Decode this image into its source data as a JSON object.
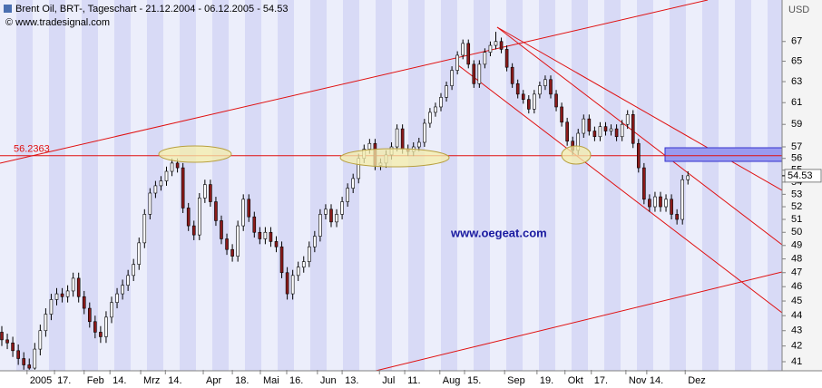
{
  "chart_data": {
    "type": "candlestick",
    "title": "Brent Oil, BRT-, Tageschart - 21.12.2004 - 06.12.2005 - 54.53",
    "source": "© www.tradesignal.com",
    "annotation": "www.oegeat.com",
    "y_label": "USD",
    "hline": 56.2363,
    "log_scale": true,
    "up_color": "#ffffff",
    "down_color": "#8b1a1a",
    "line_color": "#e01010",
    "ylim": [
      40.49,
      71.4
    ],
    "yticks": [
      41,
      42,
      43,
      44,
      45,
      46,
      47,
      48,
      49,
      50,
      51,
      52,
      53,
      54,
      55,
      56,
      57,
      59,
      61,
      63,
      65,
      67
    ],
    "xlim": [
      -0.33,
      142.15
    ],
    "xticks": [
      {
        "value": 4.6,
        "label": "2005"
      },
      {
        "value": 9.6,
        "label": "17."
      },
      {
        "value": 15,
        "label": "Feb"
      },
      {
        "value": 19.7,
        "label": "14."
      },
      {
        "value": 25.3,
        "label": "Mrz"
      },
      {
        "value": 29.8,
        "label": "14."
      },
      {
        "value": 36.7,
        "label": "Apr"
      },
      {
        "value": 42,
        "label": "18."
      },
      {
        "value": 47.1,
        "label": "Mai"
      },
      {
        "value": 51.9,
        "label": "16."
      },
      {
        "value": 57.5,
        "label": "Jun"
      },
      {
        "value": 62,
        "label": "13."
      },
      {
        "value": 68.8,
        "label": "Jul"
      },
      {
        "value": 73.4,
        "label": "11."
      },
      {
        "value": 79.8,
        "label": "Aug"
      },
      {
        "value": 84.3,
        "label": "15."
      },
      {
        "value": 91.6,
        "label": "Sep"
      },
      {
        "value": 97.5,
        "label": "19."
      },
      {
        "value": 102.6,
        "label": "Okt"
      },
      {
        "value": 107.4,
        "label": "17."
      },
      {
        "value": 113.7,
        "label": "Nov"
      },
      {
        "value": 117.5,
        "label": "14."
      },
      {
        "value": 124.5,
        "label": "Dez"
      }
    ],
    "open": [
      42.9,
      42.4,
      42.2,
      41.7,
      41.2,
      40.8,
      40.6,
      41.8,
      43.0,
      44.1,
      45.1,
      45.5,
      45.3,
      45.7,
      46.6,
      45.3,
      44.5,
      43.6,
      42.9,
      42.6,
      43.9,
      44.9,
      45.5,
      46.1,
      46.8,
      47.6,
      49.2,
      51.4,
      53.1,
      53.7,
      54.1,
      54.9,
      55.6,
      55.2,
      51.9,
      50.5,
      49.8,
      52.7,
      53.8,
      52.4,
      50.9,
      49.5,
      48.7,
      48.2,
      50.5,
      52.6,
      51.2,
      50.0,
      49.5,
      50.0,
      49.3,
      48.9,
      47.0,
      45.5,
      46.8,
      47.4,
      47.8,
      48.9,
      49.7,
      51.4,
      51.8,
      50.8,
      51.4,
      52.4,
      53.5,
      54.3,
      56.0,
      56.8,
      57.3,
      55.4,
      55.6,
      56.3,
      57.0,
      58.6,
      56.8,
      56.6,
      57.0,
      57.4,
      59.1,
      60.1,
      60.6,
      61.5,
      62.6,
      64.1,
      65.6,
      66.8,
      64.7,
      62.8,
      64.7,
      65.9,
      66.6,
      67.0,
      66.2,
      64.4,
      62.8,
      61.8,
      61.3,
      60.4,
      61.8,
      62.6,
      63.2,
      61.8,
      60.6,
      59.2,
      57.5,
      56.7,
      58.2,
      59.5,
      58.4,
      57.9,
      58.8,
      58.4,
      58.6,
      57.9,
      59.0,
      59.9,
      57.3,
      55.2,
      52.6,
      52.0,
      52.8,
      52.0,
      52.6,
      51.4,
      51.0,
      54.2
    ],
    "high": [
      43.3,
      42.8,
      42.6,
      42.1,
      41.6,
      41.2,
      42.2,
      43.4,
      44.5,
      45.5,
      45.9,
      45.9,
      46.1,
      47.0,
      47.0,
      45.7,
      44.9,
      44.0,
      43.3,
      44.3,
      45.3,
      45.9,
      46.5,
      47.2,
      48.0,
      49.6,
      51.8,
      53.5,
      54.1,
      54.5,
      55.3,
      56.0,
      56.0,
      55.6,
      52.3,
      50.9,
      53.1,
      54.2,
      54.2,
      52.8,
      51.3,
      49.9,
      49.1,
      50.9,
      53.0,
      53.0,
      51.6,
      50.4,
      50.4,
      50.4,
      49.7,
      49.3,
      47.4,
      47.2,
      47.8,
      48.2,
      49.3,
      50.1,
      51.8,
      52.2,
      52.2,
      51.8,
      52.8,
      53.9,
      54.7,
      56.4,
      57.2,
      57.7,
      57.7,
      56.0,
      56.7,
      57.4,
      59.0,
      59.0,
      57.2,
      57.4,
      57.8,
      59.5,
      60.5,
      61.0,
      61.9,
      63.0,
      64.5,
      66.0,
      67.2,
      67.2,
      65.1,
      65.1,
      66.3,
      67.0,
      68.0,
      67.4,
      66.6,
      64.8,
      63.2,
      62.2,
      61.7,
      62.2,
      63.0,
      63.6,
      63.6,
      62.2,
      61.0,
      59.6,
      57.9,
      58.6,
      59.9,
      59.9,
      58.8,
      59.2,
      59.2,
      59.0,
      59.0,
      59.4,
      60.3,
      60.3,
      57.7,
      55.6,
      53.0,
      53.2,
      53.2,
      53.0,
      53.0,
      51.8,
      54.6,
      54.9
    ],
    "low": [
      42.0,
      41.8,
      41.3,
      40.8,
      40.5,
      40.5,
      40.5,
      41.4,
      42.6,
      43.7,
      44.7,
      44.9,
      44.9,
      45.3,
      44.9,
      44.1,
      43.2,
      42.5,
      42.2,
      42.2,
      43.5,
      44.5,
      45.1,
      45.7,
      46.4,
      47.2,
      48.8,
      51.0,
      52.7,
      53.3,
      53.7,
      54.5,
      54.8,
      51.5,
      50.1,
      49.4,
      49.4,
      52.3,
      52.0,
      50.5,
      49.1,
      48.3,
      47.8,
      47.8,
      50.1,
      50.8,
      49.6,
      49.1,
      49.1,
      48.9,
      48.5,
      46.6,
      45.1,
      45.1,
      46.4,
      47.0,
      47.4,
      48.5,
      49.3,
      51.0,
      50.4,
      50.4,
      51.0,
      52.0,
      53.1,
      53.9,
      55.6,
      56.4,
      55.0,
      55.0,
      55.2,
      55.9,
      56.6,
      56.4,
      56.2,
      56.2,
      56.6,
      57.0,
      58.7,
      59.7,
      60.2,
      61.1,
      62.2,
      63.7,
      65.2,
      64.3,
      62.4,
      62.4,
      64.3,
      65.5,
      66.2,
      65.8,
      64.0,
      62.4,
      61.4,
      60.9,
      60.0,
      60.0,
      61.4,
      62.2,
      61.4,
      60.2,
      58.8,
      57.1,
      56.3,
      56.3,
      57.8,
      58.0,
      57.5,
      57.5,
      58.0,
      58.0,
      57.5,
      57.5,
      58.6,
      56.9,
      54.8,
      52.2,
      51.6,
      51.6,
      51.6,
      51.6,
      51.0,
      50.6,
      50.6,
      53.8
    ],
    "close": [
      42.4,
      42.2,
      41.7,
      41.2,
      40.8,
      40.6,
      41.8,
      43.0,
      44.1,
      45.1,
      45.5,
      45.3,
      45.7,
      46.6,
      45.3,
      44.5,
      43.6,
      42.9,
      42.6,
      43.9,
      44.9,
      45.5,
      46.1,
      46.8,
      47.6,
      49.2,
      51.4,
      53.1,
      53.7,
      54.1,
      54.9,
      55.6,
      55.2,
      51.9,
      50.5,
      49.8,
      52.7,
      53.8,
      52.4,
      50.9,
      49.5,
      48.7,
      48.2,
      50.5,
      52.6,
      51.2,
      50.0,
      49.5,
      50.0,
      49.3,
      48.9,
      47.0,
      45.5,
      46.8,
      47.4,
      47.8,
      48.9,
      49.7,
      51.4,
      51.8,
      50.8,
      51.4,
      52.4,
      53.5,
      54.3,
      56.0,
      56.8,
      57.3,
      55.4,
      55.6,
      56.3,
      57.0,
      58.6,
      56.8,
      56.6,
      57.0,
      57.4,
      59.1,
      60.1,
      60.6,
      61.5,
      62.6,
      64.1,
      65.6,
      66.8,
      64.7,
      62.8,
      64.7,
      65.9,
      66.6,
      67.0,
      66.2,
      64.4,
      62.8,
      61.8,
      61.3,
      60.4,
      61.8,
      62.6,
      63.2,
      61.8,
      60.6,
      59.2,
      57.5,
      56.7,
      58.2,
      59.5,
      58.4,
      57.9,
      58.8,
      58.4,
      58.6,
      57.9,
      59.0,
      59.9,
      57.3,
      55.2,
      52.6,
      52.0,
      52.8,
      52.0,
      52.6,
      51.4,
      51.0,
      54.2,
      54.53
    ]
  }
}
